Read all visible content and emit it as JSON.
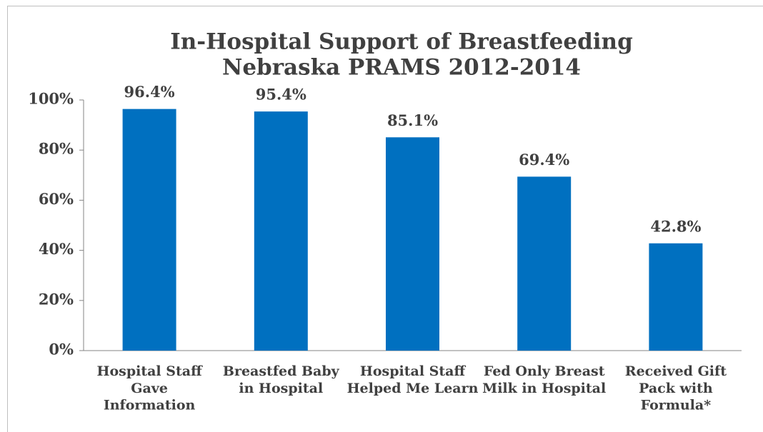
{
  "chart_data": {
    "type": "bar",
    "title": "In-Hospital Support of Breastfeeding",
    "subtitle": "Nebraska PRAMS 2012-2014",
    "categories": [
      "Hospital Staff\nGave\nInformation",
      "Breastfed Baby\nin Hospital",
      "Hospital Staff\nHelped Me Learn",
      "Fed Only Breast\nMilk in Hospital",
      "Received Gift\nPack with\nFormula*"
    ],
    "values": [
      96.4,
      95.4,
      85.1,
      69.4,
      42.8
    ],
    "value_labels": [
      "96.4%",
      "95.4%",
      "85.1%",
      "69.4%",
      "42.8%"
    ],
    "color": "#0070c0",
    "ylim": [
      0,
      100
    ],
    "yticks": [
      {
        "value": 0,
        "label": "0%"
      },
      {
        "value": 20,
        "label": "20%"
      },
      {
        "value": 40,
        "label": "40%"
      },
      {
        "value": 60,
        "label": "60%"
      },
      {
        "value": 80,
        "label": "80%"
      },
      {
        "value": 100,
        "label": "100%"
      }
    ],
    "grid": false
  }
}
